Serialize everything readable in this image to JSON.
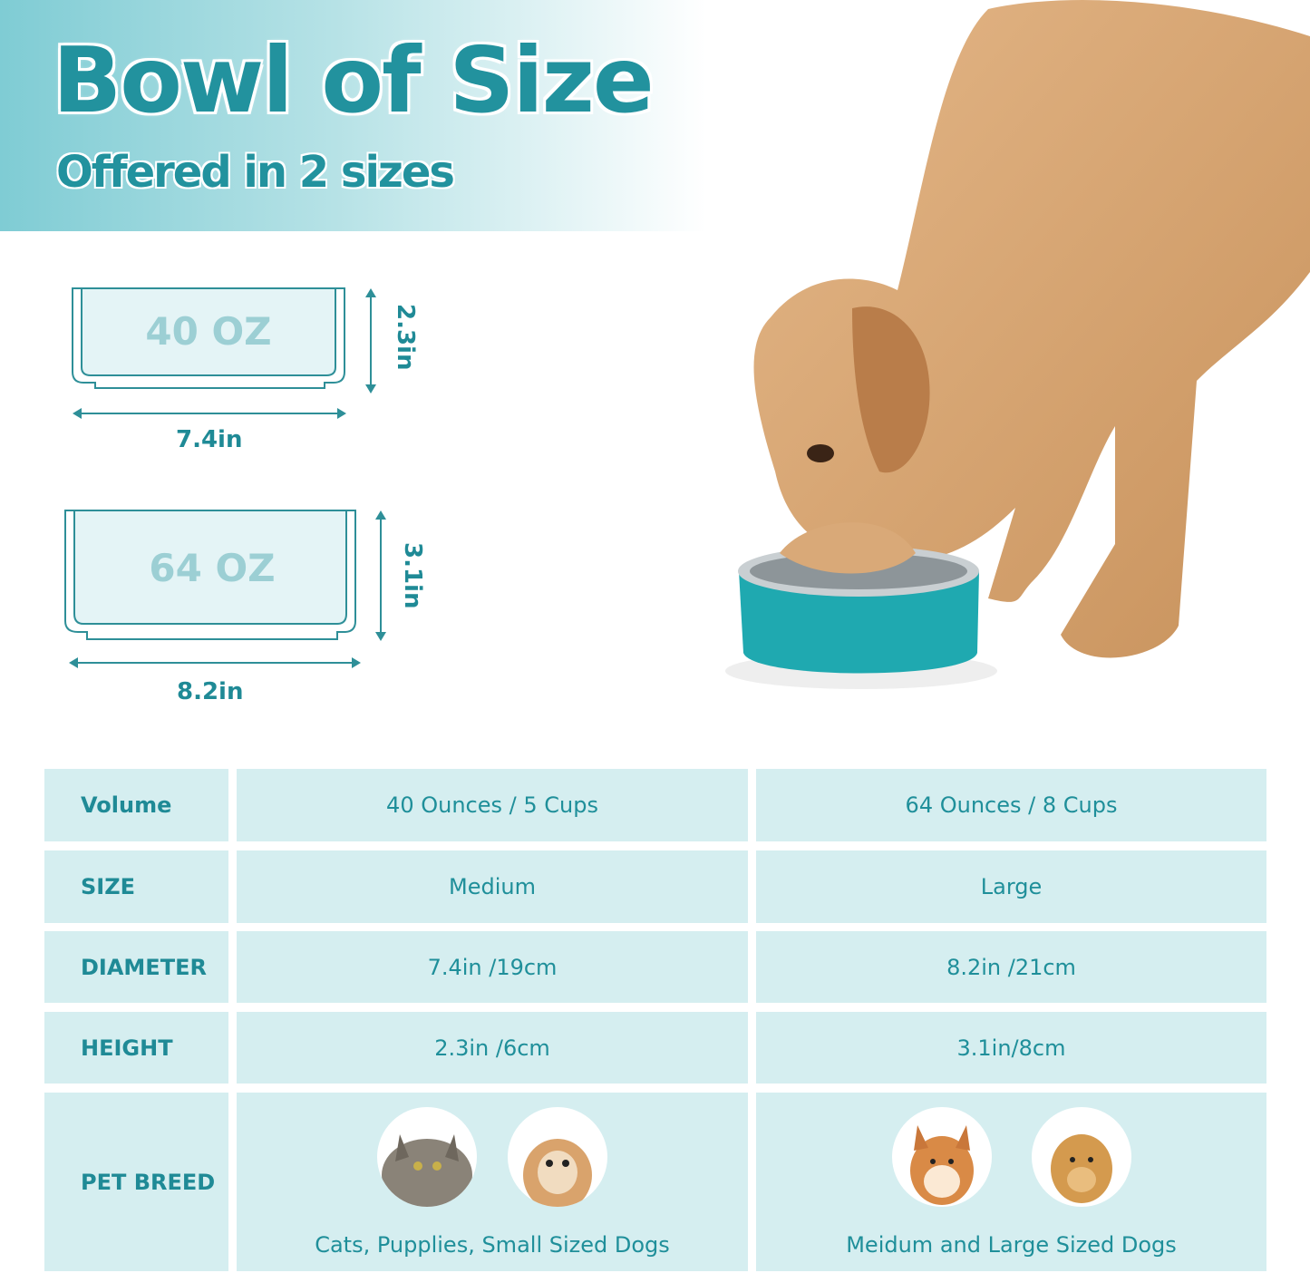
{
  "header": {
    "title": "Bowl of Size",
    "subtitle": "Offered in 2 sizes"
  },
  "diagrams": [
    {
      "capacity": "40 OZ",
      "width": "7.4in",
      "height": "2.3in"
    },
    {
      "capacity": "64 OZ",
      "width": "8.2in",
      "height": "3.1in"
    }
  ],
  "colors": {
    "accent": "#22929e",
    "cell_bg": "#d5eef0",
    "bowl": "#1fa9b0"
  },
  "table": {
    "rows": [
      {
        "label": "Volume",
        "values": [
          "40 Ounces / 5 Cups",
          "64 Ounces / 8 Cups"
        ]
      },
      {
        "label": "SIZE",
        "values": [
          "Medium",
          "Large"
        ]
      },
      {
        "label": "DIAMETER",
        "values": [
          "7.4in /19cm",
          "8.2in /21cm"
        ]
      },
      {
        "label": "HEIGHT",
        "values": [
          "2.3in /6cm",
          "3.1in/8cm"
        ]
      }
    ],
    "pet_breed": {
      "label": "PET BREED",
      "values": [
        {
          "caption": "Cats, Pupplies, Small Sized Dogs",
          "pets": [
            "cat",
            "puppy"
          ]
        },
        {
          "caption": "Meidum and Large Sized Dogs",
          "pets": [
            "shiba-inu",
            "golden-retriever"
          ]
        }
      ]
    }
  }
}
